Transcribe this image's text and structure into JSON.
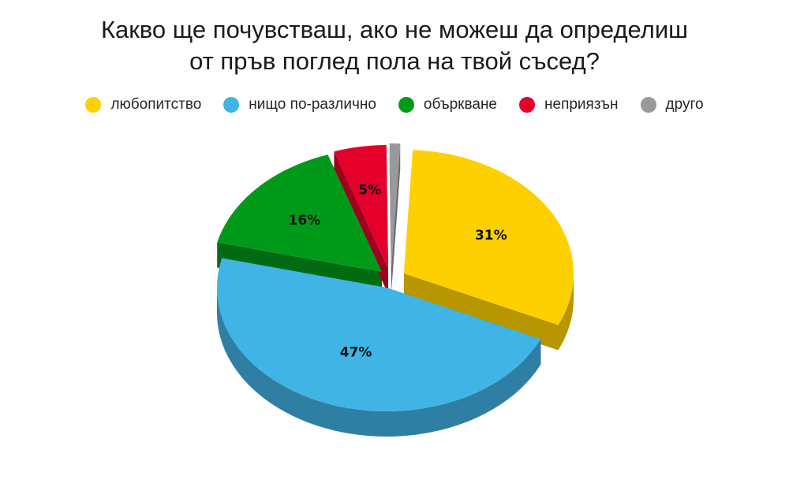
{
  "chart_data": {
    "type": "pie",
    "title_lines": [
      "Какво ще почувстваш, ако не можеш да определиш",
      "от пръв поглед пола на твой съсед?"
    ],
    "slices": [
      {
        "name": "любопитство",
        "value": 31,
        "label": "31%",
        "color": "#ffd000",
        "side_color": "#b89600"
      },
      {
        "name": "нищо по-различно",
        "value": 47,
        "label": "47%",
        "color": "#41b4e6",
        "side_color": "#2e7fa3"
      },
      {
        "name": "объркване",
        "value": 16,
        "label": "16%",
        "color": "#009a1a",
        "side_color": "#006b12"
      },
      {
        "name": "неприязън",
        "value": 5,
        "label": "5%",
        "color": "#e4002b",
        "side_color": "#9e001e"
      },
      {
        "name": "друго",
        "value": 1,
        "label": "",
        "color": "#999999",
        "side_color": "#6b6b6b"
      }
    ],
    "legend_position": "top",
    "style": "3d-exploded"
  }
}
